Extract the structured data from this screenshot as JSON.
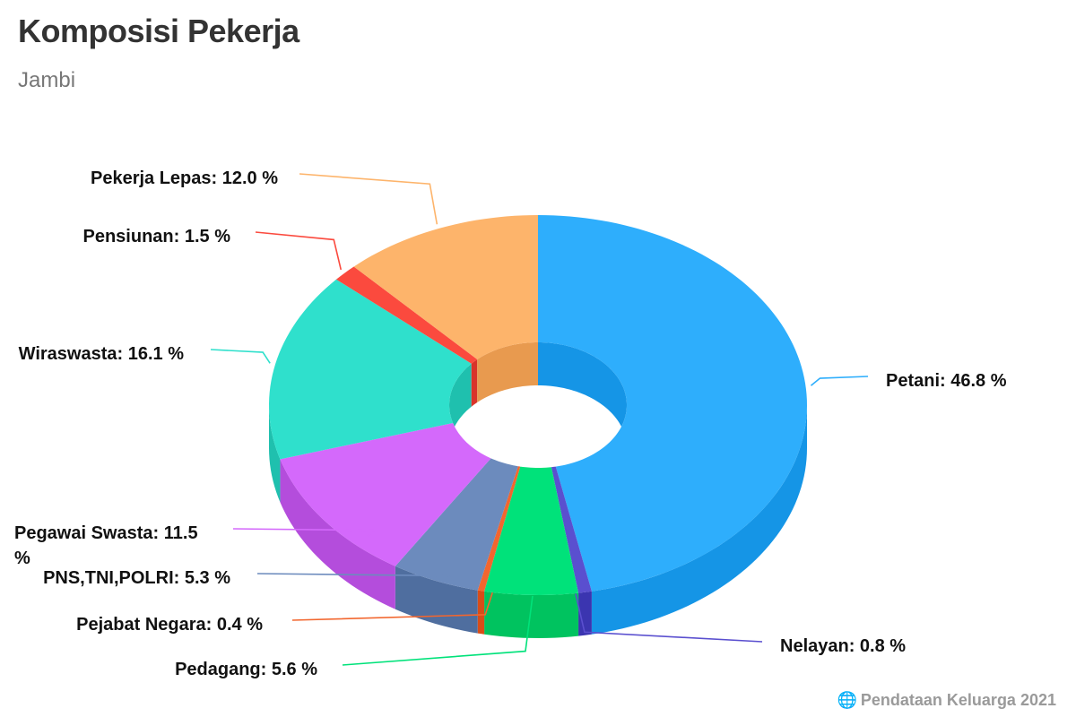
{
  "chart_data": {
    "type": "pie",
    "variant": "3d-donut",
    "title": "Komposisi Pekerja",
    "subtitle": "Jambi",
    "unit": "%",
    "slices": [
      {
        "name": "Petani",
        "value": 46.8,
        "label": "Petani: 46.8 %",
        "color": "#2eaefc",
        "side": "#1595e6"
      },
      {
        "name": "Nelayan",
        "value": 0.8,
        "label": "Nelayan: 0.8 %",
        "color": "#5a4fcf",
        "side": "#3b35b0"
      },
      {
        "name": "Pedagang",
        "value": 5.6,
        "label": "Pedagang: 5.6 %",
        "color": "#00e27a",
        "side": "#00c35f"
      },
      {
        "name": "Pejabat Negara",
        "value": 0.4,
        "label": "Pejabat Negara: 0.4 %",
        "color": "#f2662e",
        "side": "#d84d18"
      },
      {
        "name": "PNS,TNI,POLRI",
        "value": 5.3,
        "label": "PNS,TNI,POLRI: 5.3 %",
        "color": "#6c8bbd",
        "side": "#4f6e9f"
      },
      {
        "name": "Pegawai Swasta",
        "value": 11.5,
        "label": "Pegawai Swasta: 11.5 %",
        "color": "#d469fb",
        "side": "#b44ddc"
      },
      {
        "name": "Wiraswasta",
        "value": 16.1,
        "label": "Wiraswasta: 16.1 %",
        "color": "#2fe0cc",
        "side": "#1fc0ae"
      },
      {
        "name": "Pensiunan",
        "value": 1.5,
        "label": "Pensiunan: 1.5 %",
        "color": "#fb4a3e",
        "side": "#d9342a"
      },
      {
        "name": "Pekerja Lepas",
        "value": 12.0,
        "label": "Pekerja Lepas: 12.0 %",
        "color": "#fdb46b",
        "side": "#e89a4f"
      }
    ]
  },
  "source": {
    "icon": "globe-icon",
    "text": "Pendataan Keluarga 2021"
  }
}
